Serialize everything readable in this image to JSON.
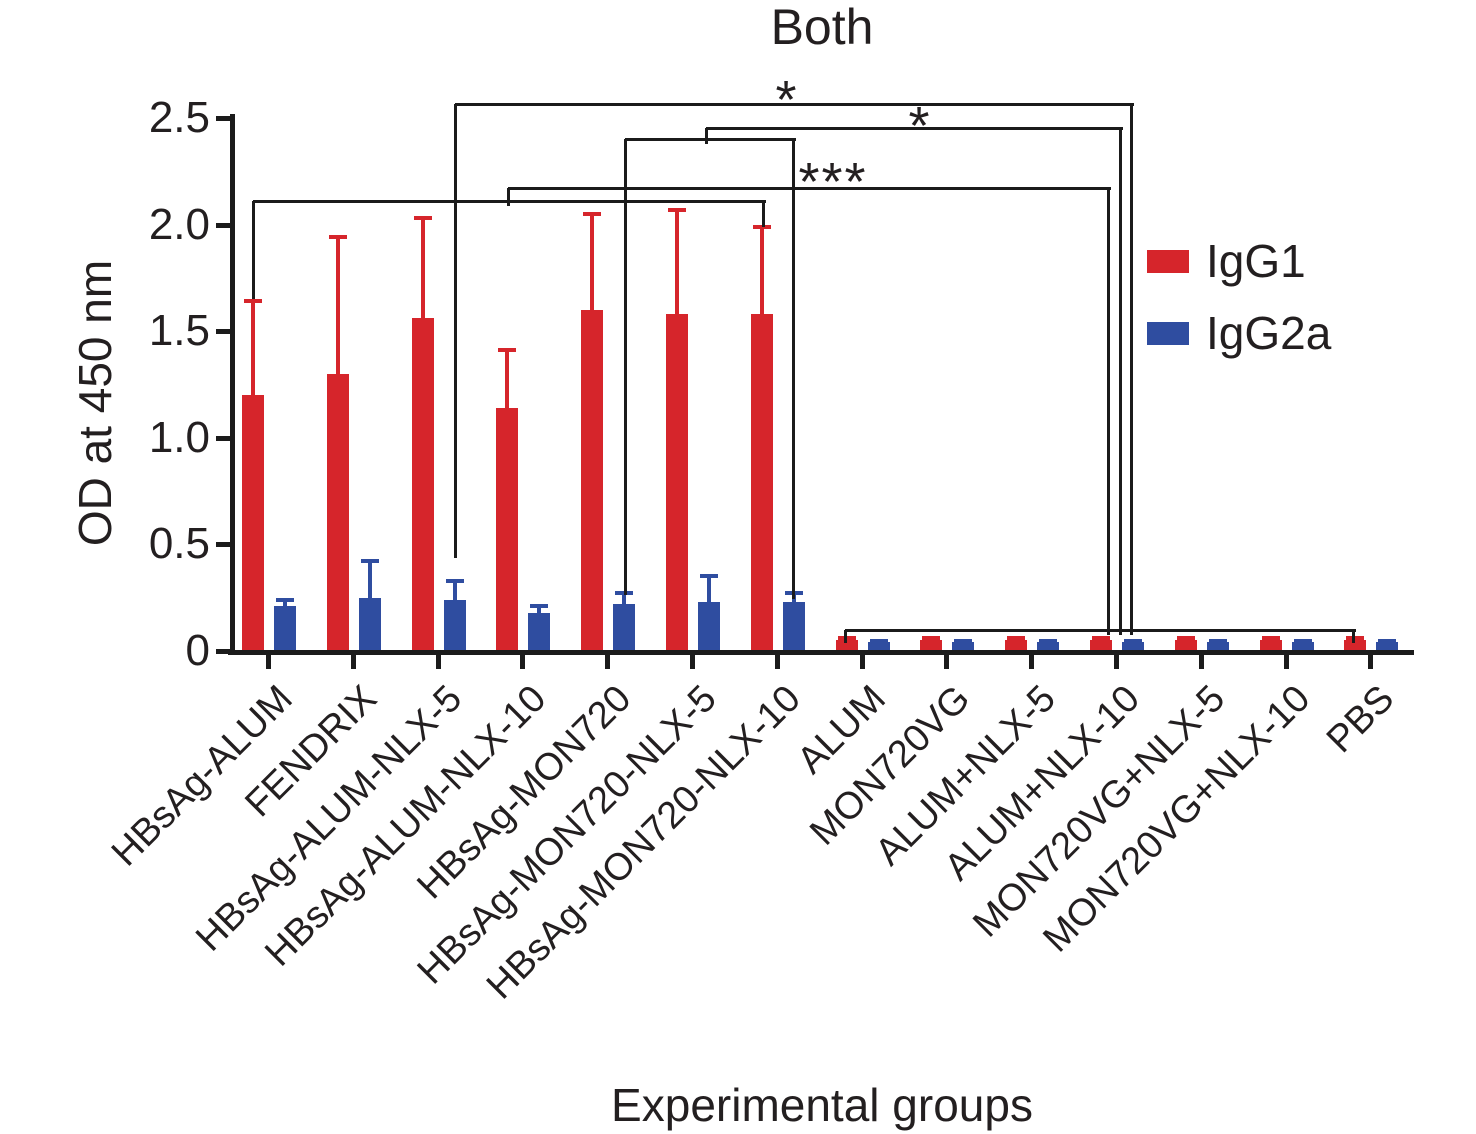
{
  "chart_data": {
    "type": "bar",
    "title": "Both",
    "xlabel": "Experimental groups",
    "ylabel": "OD at 450 nm",
    "ylim": [
      0,
      2.5
    ],
    "ytick_values": [
      0,
      0.5,
      1.0,
      1.5,
      2.0,
      2.5
    ],
    "ytick_labels": [
      "0",
      "0.5",
      "1.0",
      "1.5",
      "2.0",
      "2.5"
    ],
    "grid": false,
    "legend_position": "right",
    "background_color": "#ffffff",
    "axis_color": "#1b1b1b",
    "text_color": "#231f20",
    "categories": [
      "HBsAg-ALUM",
      "FENDRIX",
      "HBsAg-ALUM-NLX-5",
      "HBsAg-ALUM-NLX-10",
      "HBsAg-MON720",
      "HBsAg-MON720-NLX-5",
      "HBsAg-MON720-NLX-10",
      "ALUM",
      "MON720VG",
      "ALUM+NLX-5",
      "ALUM+NLX-10",
      "MON720VG+NLX-5",
      "MON720VG+NLX-10",
      "PBS"
    ],
    "series": [
      {
        "name": "IgG1",
        "color": "#d6252b",
        "values": [
          1.2,
          1.3,
          1.56,
          1.14,
          1.6,
          1.58,
          1.58,
          0.05,
          0.05,
          0.05,
          0.05,
          0.05,
          0.05,
          0.05
        ],
        "error_plus": [
          0.45,
          0.65,
          0.48,
          0.28,
          0.46,
          0.5,
          0.42,
          0.02,
          0.02,
          0.02,
          0.02,
          0.02,
          0.02,
          0.02
        ]
      },
      {
        "name": "IgG2a",
        "color": "#2f4da0",
        "values": [
          0.21,
          0.25,
          0.24,
          0.18,
          0.22,
          0.23,
          0.23,
          0.04,
          0.04,
          0.04,
          0.04,
          0.04,
          0.04,
          0.04
        ],
        "error_plus": [
          0.04,
          0.18,
          0.1,
          0.04,
          0.06,
          0.13,
          0.05,
          0.015,
          0.015,
          0.015,
          0.015,
          0.015,
          0.015,
          0.015
        ]
      }
    ],
    "significance": [
      {
        "label": "*",
        "label_pos": [
          787,
          73
        ],
        "segments": [
          [
            455,
            104,
            1131,
            104
          ],
          [
            455,
            104,
            455,
            555
          ],
          [
            1131,
            104,
            1131,
            632
          ]
        ]
      },
      {
        "label": "*",
        "label_pos": [
          920,
          99
        ],
        "segments": [
          [
            706,
            128,
            1120,
            128
          ],
          [
            706,
            128,
            706,
            141
          ],
          [
            625,
            139,
            793,
            139
          ],
          [
            625,
            139,
            625,
            592
          ],
          [
            793,
            139,
            793,
            596
          ],
          [
            1120,
            128,
            1120,
            632
          ]
        ]
      },
      {
        "label": "***",
        "label_pos": [
          833,
          155
        ],
        "segments": [
          [
            508,
            188,
            1108,
            188
          ],
          [
            508,
            188,
            508,
            203
          ],
          [
            1108,
            188,
            1108,
            632
          ]
        ]
      },
      {
        "label": "",
        "label_pos": null,
        "segments": [
          [
            253,
            201,
            763,
            201
          ],
          [
            253,
            201,
            253,
            296
          ],
          [
            763,
            201,
            763,
            224
          ]
        ]
      },
      {
        "label": "",
        "label_pos": null,
        "segments": [
          [
            845,
            630,
            1353,
            630
          ],
          [
            845,
            630,
            845,
            640
          ],
          [
            1353,
            630,
            1353,
            640
          ]
        ]
      }
    ]
  }
}
